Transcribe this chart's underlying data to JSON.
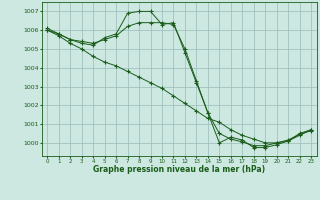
{
  "title": "Graphe pression niveau de la mer (hPa)",
  "background_color": "#cce8e0",
  "grid_color": "#99bbbb",
  "line_color": "#1a5c1a",
  "xlim": [
    -0.5,
    23.5
  ],
  "ylim": [
    999.3,
    1007.5
  ],
  "yticks": [
    1000,
    1001,
    1002,
    1003,
    1004,
    1005,
    1006,
    1007
  ],
  "xticks": [
    0,
    1,
    2,
    3,
    4,
    5,
    6,
    7,
    8,
    9,
    10,
    11,
    12,
    13,
    14,
    15,
    16,
    17,
    18,
    19,
    20,
    21,
    22,
    23
  ],
  "series": [
    {
      "x": [
        0,
        1,
        2,
        3,
        4,
        5,
        6,
        7,
        8,
        9,
        10,
        11,
        12,
        13,
        14,
        15,
        16,
        17,
        18,
        19,
        20,
        21,
        22,
        23
      ],
      "y": [
        1006.1,
        1005.8,
        1005.5,
        1005.3,
        1005.2,
        1005.6,
        1005.8,
        1006.9,
        1007.0,
        1007.0,
        1006.3,
        1006.4,
        1004.8,
        1003.2,
        1001.6,
        1000.0,
        1000.3,
        1000.15,
        999.75,
        999.75,
        999.9,
        1000.1,
        1000.5,
        1000.7
      ]
    },
    {
      "x": [
        0,
        1,
        2,
        3,
        4,
        5,
        6,
        7,
        8,
        9,
        10,
        11,
        12,
        13,
        14,
        15,
        16,
        17,
        18,
        19,
        20,
        21,
        22,
        23
      ],
      "y": [
        1006.0,
        1005.8,
        1005.5,
        1005.4,
        1005.3,
        1005.5,
        1005.7,
        1006.2,
        1006.4,
        1006.4,
        1006.4,
        1006.3,
        1005.0,
        1003.3,
        1001.6,
        1000.5,
        1000.2,
        1000.05,
        999.85,
        999.85,
        1000.0,
        1000.15,
        1000.45,
        1000.65
      ]
    },
    {
      "x": [
        0,
        1,
        2,
        3,
        4,
        5,
        6,
        7,
        8,
        9,
        10,
        11,
        12,
        13,
        14,
        15,
        16,
        17,
        18,
        19,
        20,
        21,
        22,
        23
      ],
      "y": [
        1006.0,
        1005.7,
        1005.3,
        1005.0,
        1004.6,
        1004.3,
        1004.1,
        1003.8,
        1003.5,
        1003.2,
        1002.9,
        1002.5,
        1002.1,
        1001.7,
        1001.3,
        1001.1,
        1000.7,
        1000.4,
        1000.2,
        1000.0,
        1000.0,
        1000.1,
        1000.4,
        1000.7
      ]
    }
  ]
}
